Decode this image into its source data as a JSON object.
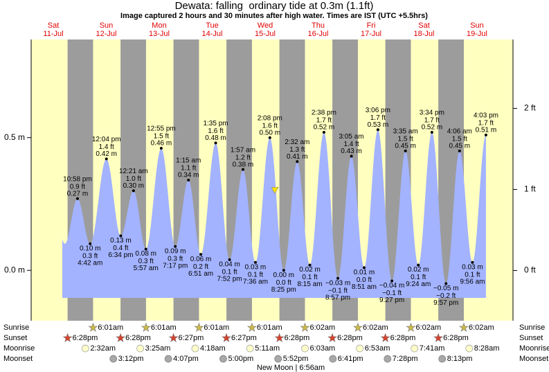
{
  "chart_data": {
    "type": "tide",
    "title": "Dewata: falling  ordinary tide at 0.3m (1.1ft)",
    "subtitle": "Image captured 2 hours and 30 minutes after high water. Times are IST (UTC +5.5hrs)",
    "days": [
      {
        "name": "Sat",
        "date": "11-Jul"
      },
      {
        "name": "Sun",
        "date": "12-Jul"
      },
      {
        "name": "Mon",
        "date": "13-Jul"
      },
      {
        "name": "Tue",
        "date": "14-Jul"
      },
      {
        "name": "Wed",
        "date": "15-Jul"
      },
      {
        "name": "Thu",
        "date": "16-Jul"
      },
      {
        "name": "Fri",
        "date": "17-Jul"
      },
      {
        "name": "Sat",
        "date": "18-Jul"
      },
      {
        "name": "Sun",
        "date": "19-Jul"
      }
    ],
    "ylim": [
      -0.19,
      0.87
    ],
    "yticks": [
      {
        "value": 0,
        "label": "0.0 m"
      },
      {
        "value": 0.5,
        "label": "0.5 m"
      }
    ],
    "y2lim": [
      -0.62,
      2.85
    ],
    "y2ticks": [
      {
        "value": 0,
        "label": "0 ft"
      },
      {
        "value": 1,
        "label": "1 ft"
      },
      {
        "value": 2,
        "label": "2 ft"
      }
    ],
    "extremes": {
      "times": [
        "10:58 pm",
        "4:42 am",
        "12:04 pm",
        "6:34 pm",
        "12:21 am",
        "5:57 am",
        "12:55 pm",
        "7:17 pm",
        "1:15 am",
        "6:51 am",
        "1:35 pm",
        "7:52 pm",
        "1:57 am",
        "7:36 am",
        "2:08 pm",
        "8:25 pm",
        "2:32 am",
        "8:15 am",
        "2:38 pm",
        "8:57 pm",
        "3:05 am",
        "8:51 am",
        "3:06 pm",
        "9:27 pm",
        "3:35 am",
        "9:24 am",
        "3:34 pm",
        "9:57 pm",
        "4:06 am",
        "9:56 am",
        "4:03 pm"
      ],
      "values": [
        0.27,
        0.1,
        0.42,
        0.13,
        0.3,
        0.08,
        0.46,
        0.09,
        0.34,
        0.06,
        0.48,
        0.04,
        0.38,
        0.03,
        0.5,
        0.0,
        0.41,
        0.02,
        0.52,
        -0.03,
        0.43,
        0.01,
        0.53,
        -0.04,
        0.45,
        0.02,
        0.52,
        -0.05,
        0.45,
        0.03,
        0.51
      ],
      "value_labels": [
        "0.27 m",
        "0.10 m",
        "0.42 m",
        "0.13 m",
        "0.30 m",
        "0.08 m",
        "0.46 m",
        "0.09 m",
        "0.34 m",
        "0.06 m",
        "0.48 m",
        "0.04 m",
        "0.38 m",
        "0.03 m",
        "0.50 m",
        "0.00 m",
        "0.41 m",
        "0.02 m",
        "0.52 m",
        "−0.03 m",
        "0.43 m",
        "0.01 m",
        "0.53 m",
        "−0.04 m",
        "0.45 m",
        "0.02 m",
        "0.52 m",
        "−0.05 m",
        "0.45 m",
        "0.03 m",
        "0.51 m"
      ],
      "ft_labels": [
        "0.9 ft",
        "0.3 ft",
        "1.4 ft",
        "0.4 ft",
        "1.0 ft",
        "0.3 ft",
        "1.5 ft",
        "0.3 ft",
        "1.1 ft",
        "0.2 ft",
        "1.6 ft",
        "0.1 ft",
        "1.2 ft",
        "0.1 ft",
        "1.6 ft",
        "0.0 ft",
        "1.3 ft",
        "0.1 ft",
        "1.7 ft",
        "−0.1 ft",
        "1.4 ft",
        "0.0 ft",
        "1.7 ft",
        "−0.1 ft",
        "1.5 ft",
        "0.1 ft",
        "1.7 ft",
        "−0.2 ft",
        "1.5 ft",
        "0.1 ft",
        "1.7 ft"
      ]
    },
    "current_level": 0.3,
    "rows": [
      {
        "label": "Sunrise",
        "times": [
          "6:01am",
          "6:01am",
          "6:01am",
          "6:01am",
          "6:02am",
          "6:02am",
          "6:02am",
          "6:02am"
        ]
      },
      {
        "label": "Sunset",
        "times": [
          "6:28pm",
          "6:28pm",
          "6:27pm",
          "6:27pm",
          "6:28pm",
          "6:28pm",
          "6:28pm",
          "6:28pm"
        ]
      },
      {
        "label": "Moonrise",
        "times": [
          "2:32am",
          "3:25am",
          "4:18am",
          "5:11am",
          "6:03am",
          "6:53am",
          "7:41am",
          "8:28am"
        ]
      },
      {
        "label": "Moonset",
        "times": [
          "3:12pm",
          "4:07pm",
          "5:00pm",
          "5:52pm",
          "6:41pm",
          "7:28pm",
          "8:13pm"
        ]
      }
    ],
    "moon_phase": "New Moon | 6:56am",
    "colors": {
      "day": "#ffffc0",
      "night": "#9c9c9c",
      "water": "#a3b3ff",
      "day_label": "#e00000",
      "sunrise": "#cbb94a",
      "sunset": "#d8412c",
      "moonrise": "#ffffcc",
      "moonset": "#a8a8a8"
    }
  }
}
